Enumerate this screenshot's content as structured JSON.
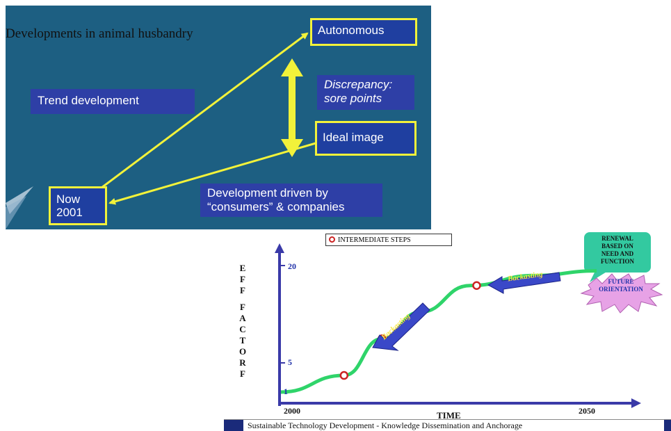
{
  "top_slide": {
    "title": "Developments  in animal husbandry",
    "autonomous": "Autonomous",
    "ideal_image": "Ideal image",
    "now_line1": "Now",
    "now_line2": "2001",
    "trend": "Trend development",
    "discrepancy_line1": "Discrepancy:",
    "discrepancy_line2": "sore points",
    "driven_line1": "Development driven by",
    "driven_line2": "“consumers” & companies",
    "colors": {
      "background": "#1d5f82",
      "accent": "#f2f23a",
      "box": "#2e3fa6"
    }
  },
  "bottom_chart": {
    "y_axis_letters": [
      "E",
      "F",
      "F",
      "",
      "F",
      "A",
      "C",
      "T",
      "O",
      "R",
      "F"
    ],
    "y_ticks": [
      "20",
      "5",
      "1"
    ],
    "x_ticks": [
      "2000",
      "2050"
    ],
    "x_axis_label": "TIME",
    "legend": "INTERMEDIATE  STEPS",
    "backcasting_1": "Backasting",
    "backcasting_2": "Backasting",
    "renewal_lines": [
      "RENEWAL",
      "BASED ON",
      "NEED AND",
      "FUNCTION"
    ],
    "future_lines": [
      "FUTURE",
      "ORIENTATION"
    ],
    "footer": "Sustainable Technology Development - Knowledge Dissemination and Anchorage",
    "colors": {
      "curve": "#2fd46a",
      "axis": "#3a3aa8",
      "callout": "#33c9a0",
      "star": "#e7a2e6",
      "marker": "#cc2222"
    }
  },
  "chart_data": {
    "type": "line",
    "xlabel": "TIME",
    "ylabel": "EFF FACTORF",
    "xlim": [
      2000,
      2050
    ],
    "ylim": [
      1,
      20
    ],
    "series": [
      {
        "name": "",
        "x": [
          2000,
          2010,
          2016,
          2022,
          2030,
          2040,
          2050
        ],
        "y": [
          1,
          3.5,
          9,
          13,
          17,
          18.5,
          19.2
        ]
      }
    ],
    "intermediate_steps": [
      {
        "x": 2010,
        "y": 3.5
      },
      {
        "x": 2016,
        "y": 9
      },
      {
        "x": 2022,
        "y": 13
      },
      {
        "x": 2031,
        "y": 17
      }
    ]
  }
}
